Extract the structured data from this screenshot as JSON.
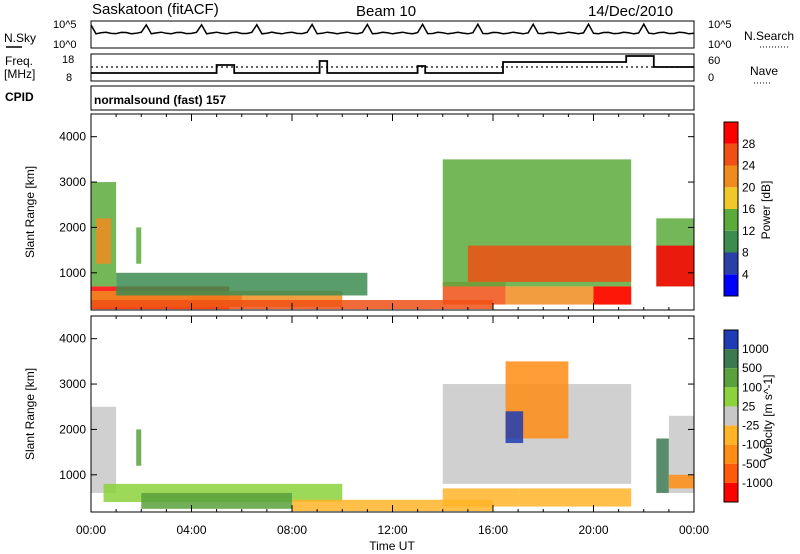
{
  "header": {
    "site": "Saskatoon (fitACF)",
    "beam": "Beam 10",
    "date": "14/Dec/2010"
  },
  "noise_panel": {
    "left_label": "N.Sky",
    "right_label": "N.Search",
    "left_ticks": [
      "10^5",
      "10^0"
    ],
    "right_ticks": [
      "10^5",
      "10^0"
    ]
  },
  "freq_panel": {
    "left_label_line1": "Freq.",
    "left_label_line2": "[MHz]",
    "right_label": "Nave",
    "left_ticks": [
      "18",
      "8"
    ],
    "right_ticks": [
      "60",
      "0"
    ]
  },
  "cpid": {
    "label": "CPID",
    "text": "normalsound (fast) 157"
  },
  "axes": {
    "xlabel": "Time UT",
    "ylabel": "Slant Range [km]",
    "xticks": [
      "00:00",
      "04:00",
      "08:00",
      "12:00",
      "16:00",
      "20:00",
      "00:00"
    ],
    "yticks": [
      "1000",
      "2000",
      "3000",
      "4000"
    ]
  },
  "power_colorbar": {
    "label": "Power [dB]",
    "ticks": [
      "4",
      "8",
      "12",
      "16",
      "20",
      "24",
      "28"
    ],
    "colors": [
      "#0000ff",
      "#2a3fa8",
      "#3c8c50",
      "#5aaa3c",
      "#f0c828",
      "#f08c1e",
      "#f05014",
      "#ff0000"
    ]
  },
  "velocity_colorbar": {
    "label": "Velocity [m s^-1]",
    "ticks": [
      "1000",
      "500",
      "100",
      "25",
      "-25",
      "-100",
      "-500",
      "-1000"
    ],
    "colors": [
      "#1e3cb4",
      "#3c7850",
      "#5aa03c",
      "#8cd23c",
      "#c8c8c8",
      "#ffb428",
      "#ff8c14",
      "#ff5a0a",
      "#ff0000"
    ]
  },
  "chart_data": [
    {
      "type": "heatmap",
      "quantity": "power",
      "x_range_hours": [
        0,
        24
      ],
      "ylim_km": [
        180,
        4500
      ],
      "regions": [
        {
          "t0": 0.0,
          "t1": 5.5,
          "r0": 200,
          "r1": 700,
          "level": "28"
        },
        {
          "t0": 4.0,
          "t1": 6.0,
          "r0": 250,
          "r1": 500,
          "level": "28"
        },
        {
          "t0": 0.0,
          "t1": 10.0,
          "r0": 250,
          "r1": 600,
          "level": "20"
        },
        {
          "t0": 0.0,
          "t1": 16.0,
          "r0": 200,
          "r1": 400,
          "level": "24"
        },
        {
          "t0": 0.0,
          "t1": 1.0,
          "r0": 700,
          "r1": 3000,
          "level": "12"
        },
        {
          "t0": 0.2,
          "t1": 0.8,
          "r0": 1200,
          "r1": 2200,
          "level": "20"
        },
        {
          "t0": 1.0,
          "t1": 11.0,
          "r0": 500,
          "r1": 1000,
          "level": "8"
        },
        {
          "t0": 1.8,
          "t1": 2.0,
          "r0": 1200,
          "r1": 2000,
          "level": "12"
        },
        {
          "t0": 14.0,
          "t1": 16.5,
          "r0": 300,
          "r1": 800,
          "level": "24"
        },
        {
          "t0": 14.0,
          "t1": 21.5,
          "r0": 700,
          "r1": 3500,
          "level": "12"
        },
        {
          "t0": 15.0,
          "t1": 21.5,
          "r0": 800,
          "r1": 1600,
          "level": "24"
        },
        {
          "t0": 16.5,
          "t1": 21.5,
          "r0": 300,
          "r1": 700,
          "level": "20"
        },
        {
          "t0": 20.0,
          "t1": 21.5,
          "r0": 300,
          "r1": 700,
          "level": "28"
        },
        {
          "t0": 22.5,
          "t1": 24.0,
          "r0": 700,
          "r1": 2200,
          "level": "12"
        },
        {
          "t0": 22.5,
          "t1": 24.0,
          "r0": 700,
          "r1": 1600,
          "level": "28"
        }
      ]
    },
    {
      "type": "heatmap",
      "quantity": "velocity",
      "x_range_hours": [
        0,
        24
      ],
      "ylim_km": [
        180,
        4500
      ],
      "regions": [
        {
          "t0": 0.0,
          "t1": 1.0,
          "r0": 600,
          "r1": 2500,
          "level": "-25"
        },
        {
          "t0": 1.8,
          "t1": 2.0,
          "r0": 1200,
          "r1": 2000,
          "level": "100"
        },
        {
          "t0": 0.5,
          "t1": 10.0,
          "r0": 400,
          "r1": 800,
          "level": "25"
        },
        {
          "t0": 2.0,
          "t1": 8.0,
          "r0": 250,
          "r1": 600,
          "level": "100"
        },
        {
          "t0": 8.0,
          "t1": 16.0,
          "r0": 200,
          "r1": 450,
          "level": "-100"
        },
        {
          "t0": 14.0,
          "t1": 17.0,
          "r0": 300,
          "r1": 700,
          "level": "-100"
        },
        {
          "t0": 14.0,
          "t1": 21.5,
          "r0": 800,
          "r1": 3000,
          "level": "-25"
        },
        {
          "t0": 16.5,
          "t1": 19.0,
          "r0": 1800,
          "r1": 3500,
          "level": "-500"
        },
        {
          "t0": 16.5,
          "t1": 17.2,
          "r0": 1700,
          "r1": 2400,
          "level": "1000"
        },
        {
          "t0": 17.0,
          "t1": 21.5,
          "r0": 300,
          "r1": 700,
          "level": "-100"
        },
        {
          "t0": 22.5,
          "t1": 23.0,
          "r0": 600,
          "r1": 1800,
          "level": "500"
        },
        {
          "t0": 23.0,
          "t1": 24.0,
          "r0": 600,
          "r1": 2300,
          "level": "-25"
        },
        {
          "t0": 23.0,
          "t1": 24.0,
          "r0": 700,
          "r1": 1000,
          "level": "-500"
        }
      ]
    }
  ]
}
